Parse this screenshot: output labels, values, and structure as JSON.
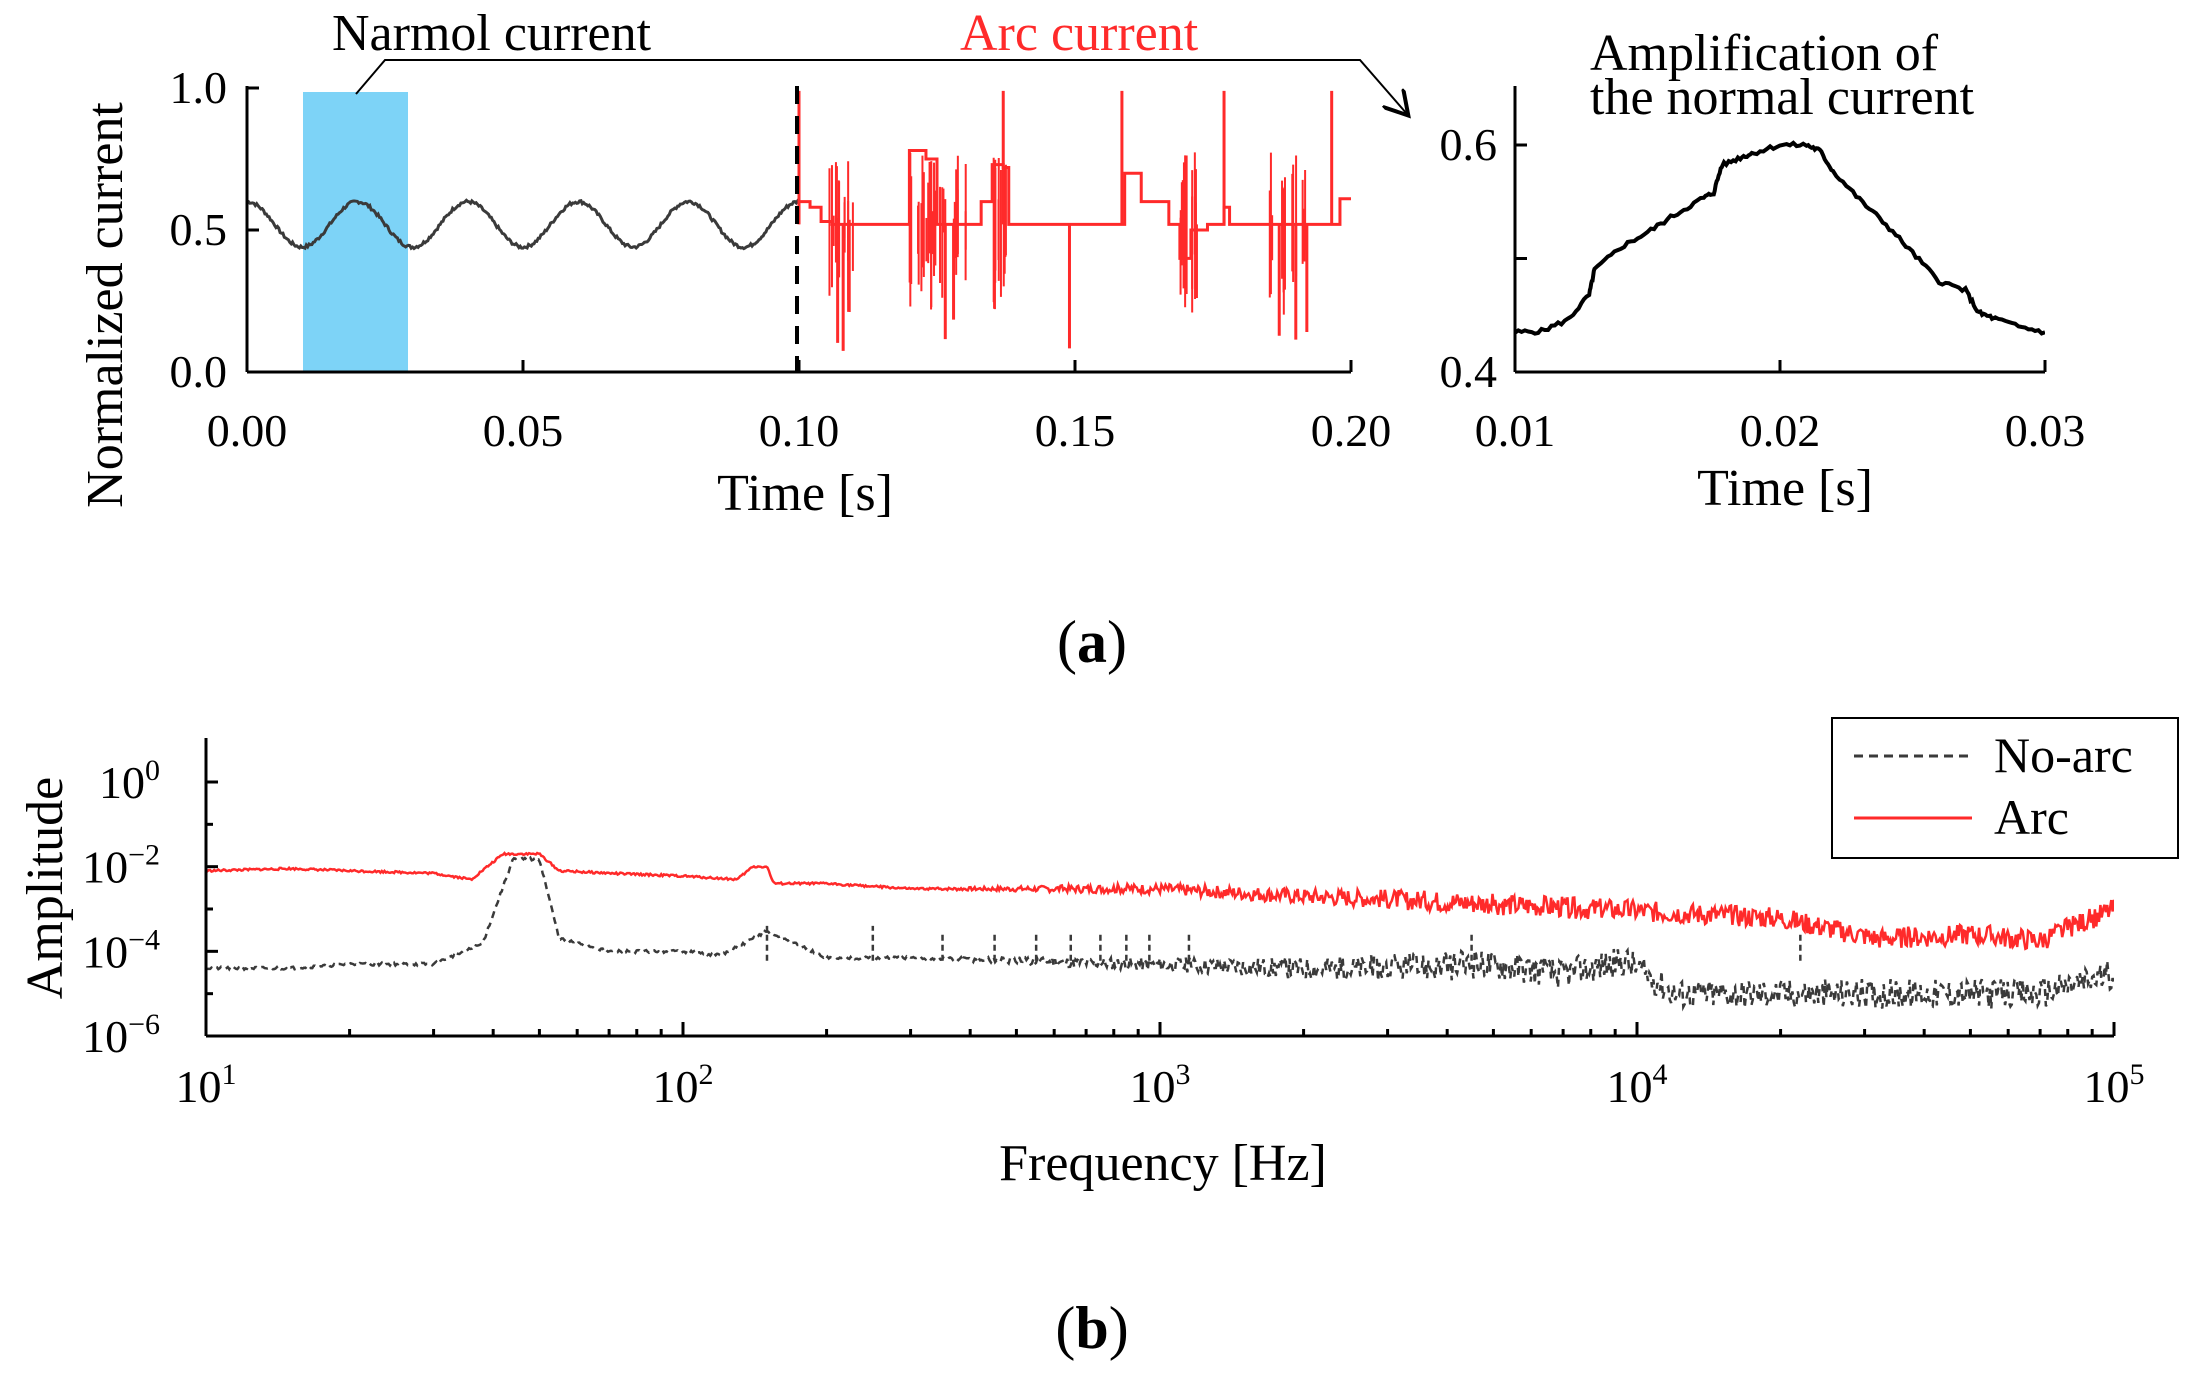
{
  "colors": {
    "normal": "#3a3a3a",
    "arc": "#ff2a2a",
    "highlight": "#7dd3f7",
    "black": "#000000"
  },
  "chart_data": [
    {
      "type": "line",
      "ylabel": "Normalized current",
      "xlabel": "Time [s]",
      "xlim": [
        0.0,
        0.2
      ],
      "ylim": [
        0.0,
        1.0
      ],
      "xticks": [
        "0.00",
        "0.05",
        "0.10",
        "0.15",
        "0.20"
      ],
      "yticks": [
        "0.0",
        "0.5",
        "1.0"
      ],
      "divider_x": 0.1,
      "highlight_window": [
        0.01,
        0.03
      ],
      "annotations": {
        "normal": "Narmol current",
        "arc": "Arc current"
      },
      "series": [
        {
          "name": "Narmol current",
          "color": "#3a3a3a",
          "description": "50 Hz sinusoid, amplitude about 0.08 around 0.52",
          "x_range": [
            0.0,
            0.1
          ],
          "frequency_hz": 50,
          "offset": 0.52,
          "amplitude": 0.08
        },
        {
          "name": "Arc current",
          "color": "#ff2a2a",
          "x": [
            0.1,
            0.102,
            0.104,
            0.106,
            0.108,
            0.11,
            0.112,
            0.118,
            0.12,
            0.123,
            0.125,
            0.128,
            0.13,
            0.133,
            0.135,
            0.137,
            0.138,
            0.14,
            0.143,
            0.146,
            0.149,
            0.152,
            0.155,
            0.158,
            0.159,
            0.162,
            0.167,
            0.169,
            0.171,
            0.174,
            0.177,
            0.178,
            0.181,
            0.185,
            0.188,
            0.19,
            0.193,
            0.196,
            0.198,
            0.2
          ],
          "y": [
            0.6,
            0.58,
            0.53,
            0.52,
            0.52,
            0.52,
            0.52,
            0.52,
            0.78,
            0.75,
            0.52,
            0.52,
            0.52,
            0.6,
            0.73,
            0.72,
            0.52,
            0.52,
            0.52,
            0.52,
            0.52,
            0.52,
            0.52,
            0.52,
            0.7,
            0.6,
            0.52,
            0.4,
            0.5,
            0.52,
            0.58,
            0.52,
            0.52,
            0.52,
            0.52,
            0.52,
            0.52,
            0.52,
            0.61,
            0.61
          ],
          "spikes_up": [
            0.1,
            0.137,
            0.1585,
            0.177,
            0.1965
          ],
          "spikes_down": [
            0.107,
            0.108,
            0.109,
            0.1265,
            0.128,
            0.149,
            0.172,
            0.187,
            0.19,
            0.192
          ]
        }
      ]
    },
    {
      "type": "line",
      "title": "Amplification of the normal current",
      "xlabel": "Time [s]",
      "xlim": [
        0.01,
        0.03
      ],
      "ylim": [
        0.4,
        0.65
      ],
      "xticks": [
        "0.01",
        "0.02",
        "0.03"
      ],
      "yticks": [
        "0.4",
        "0.6"
      ],
      "series": [
        {
          "name": "Normal current (zoom)",
          "color": "#000000",
          "x": [
            0.01,
            0.011,
            0.012,
            0.0128,
            0.013,
            0.014,
            0.015,
            0.016,
            0.017,
            0.0175,
            0.0178,
            0.0185,
            0.019,
            0.02,
            0.021,
            0.0215,
            0.022,
            0.023,
            0.024,
            0.025,
            0.026,
            0.027,
            0.0275,
            0.028,
            0.029,
            0.03
          ],
          "y": [
            0.435,
            0.436,
            0.446,
            0.468,
            0.49,
            0.51,
            0.523,
            0.538,
            0.552,
            0.558,
            0.582,
            0.589,
            0.593,
            0.6,
            0.6,
            0.595,
            0.577,
            0.552,
            0.53,
            0.505,
            0.48,
            0.472,
            0.452,
            0.448,
            0.44,
            0.435
          ]
        }
      ]
    },
    {
      "type": "line",
      "ylabel": "Amplitude",
      "xlabel": "Frequency [Hz]",
      "xscale": "log",
      "yscale": "log",
      "xlim": [
        10,
        100000
      ],
      "ylim": [
        1e-06,
        10
      ],
      "xticks": [
        {
          "base": "10",
          "exp": "1"
        },
        {
          "base": "10",
          "exp": "2"
        },
        {
          "base": "10",
          "exp": "3"
        },
        {
          "base": "10",
          "exp": "4"
        },
        {
          "base": "10",
          "exp": "5"
        }
      ],
      "yticks": [
        {
          "base": "10",
          "exp": "0"
        },
        {
          "base": "10",
          "exp": "−2"
        },
        {
          "base": "10",
          "exp": "−4"
        },
        {
          "base": "10",
          "exp": "−6"
        }
      ],
      "legend": {
        "position": "top-right",
        "entries": [
          "No-arc",
          "Arc"
        ]
      },
      "series": [
        {
          "name": "No-arc",
          "color": "#3a3a3a",
          "style": "dashed",
          "x": [
            10,
            15,
            20,
            30,
            38,
            44,
            50,
            55,
            70,
            100,
            120,
            150,
            200,
            300,
            500,
            1000,
            2000,
            3000,
            5000,
            7000,
            9500,
            12000,
            20000,
            30000,
            50000,
            70000,
            100000
          ],
          "y": [
            4e-05,
            4e-05,
            5e-05,
            5e-05,
            0.00015,
            0.015,
            0.015,
            0.0002,
            0.0001,
            0.0001,
            8e-05,
            0.0003,
            7e-05,
            7e-05,
            6e-05,
            5e-05,
            4e-05,
            4e-05,
            5e-05,
            3e-05,
            6e-05,
            1e-05,
            1e-05,
            1e-05,
            1e-05,
            1e-05,
            3e-05
          ],
          "peaks_hz": [
            150,
            250,
            350,
            450,
            550,
            650,
            750,
            850,
            950,
            1150,
            4500,
            22000
          ]
        },
        {
          "name": "Arc",
          "color": "#ff2a2a",
          "style": "solid",
          "x": [
            10,
            15,
            20,
            30,
            36,
            42,
            50,
            55,
            70,
            100,
            130,
            140,
            150,
            155,
            200,
            300,
            500,
            1000,
            2000,
            3000,
            5000,
            10000,
            20000,
            32000,
            50000,
            70000,
            100000
          ],
          "y": [
            0.008,
            0.009,
            0.008,
            0.007,
            0.005,
            0.02,
            0.02,
            0.008,
            0.007,
            0.006,
            0.005,
            0.01,
            0.01,
            0.004,
            0.004,
            0.003,
            0.003,
            0.003,
            0.002,
            0.0017,
            0.0013,
            0.0009,
            0.0006,
            0.0002,
            0.00025,
            0.00018,
            0.001
          ]
        }
      ]
    }
  ],
  "captions": {
    "a": "a",
    "b": "b"
  }
}
